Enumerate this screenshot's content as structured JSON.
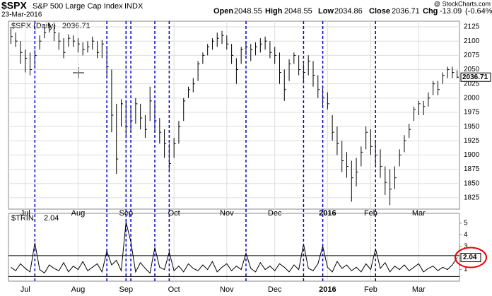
{
  "header": {
    "symbol": "$SPX",
    "name": "S&P 500 Large Cap Index",
    "exchange": "INDX",
    "date": "23-Mar-2016",
    "open_label": "Open",
    "open": 2048.55,
    "high_label": "High",
    "low_label": "Low",
    "close_label": "Close",
    "chg_label": "Chg",
    "chg": -13.09,
    "chg_pct": "(-0.64%)",
    "source": "@ StockCharts.com"
  },
  "chart_data": [
    {
      "type": "ohlc",
      "name": "$SPX (Daily)",
      "color": "#000000",
      "categories": [
        null,
        null,
        null,
        "Jul",
        null,
        null,
        null,
        null,
        null,
        null,
        null,
        null,
        null,
        null,
        "Aug",
        null,
        null,
        null,
        null,
        null,
        null,
        null,
        null,
        null,
        "Sep",
        null,
        null,
        null,
        null,
        null,
        null,
        null,
        null,
        null,
        "Oct",
        null,
        null,
        null,
        null,
        null,
        null,
        null,
        null,
        null,
        null,
        "Nov",
        null,
        null,
        null,
        null,
        null,
        null,
        null,
        null,
        null,
        "Dec",
        null,
        null,
        null,
        null,
        null,
        null,
        null,
        null,
        null,
        null,
        "2016",
        null,
        null,
        null,
        null,
        null,
        null,
        null,
        null,
        "Feb",
        null,
        null,
        null,
        null,
        null,
        null,
        null,
        null,
        null,
        "Mar",
        null,
        null,
        null,
        null,
        null,
        null,
        null,
        null
      ],
      "high": [
        2125,
        2115,
        2100,
        2085,
        2080,
        2085,
        2110,
        2125,
        2132,
        2128,
        2115,
        2105,
        2112,
        2110,
        2105,
        2098,
        2100,
        2108,
        2100,
        2102,
        2090,
        2050,
        1990,
        1998,
        1995,
        1985,
        2000,
        1990,
        1970,
        2020,
        1995,
        1965,
        1945,
        1920,
        1930,
        1960,
        2000,
        2020,
        2035,
        2065,
        2080,
        2095,
        2105,
        2115,
        2118,
        2110,
        2095,
        2070,
        2090,
        2098,
        2095,
        2098,
        2105,
        2108,
        2100,
        2090,
        2080,
        2050,
        2068,
        2080,
        2075,
        2060,
        2075,
        2065,
        2040,
        2020,
        2010,
        1970,
        1950,
        1925,
        1905,
        1890,
        1895,
        1915,
        1950,
        1945,
        1925,
        1910,
        1880,
        1875,
        1880,
        1910,
        1935,
        1955,
        1985,
        1995,
        1995,
        2010,
        2030,
        2030,
        2045,
        2055,
        2055,
        2048.55
      ],
      "low": [
        2095,
        2090,
        2060,
        2045,
        2040,
        2055,
        2085,
        2105,
        2115,
        2100,
        2085,
        2070,
        2090,
        2090,
        2080,
        2075,
        2080,
        2085,
        2070,
        2070,
        2035,
        1940,
        1867,
        1950,
        1930,
        1940,
        1955,
        1945,
        1930,
        1960,
        1940,
        1920,
        1895,
        1871,
        1895,
        1920,
        1960,
        2000,
        2010,
        2030,
        2060,
        2075,
        2085,
        2090,
        2095,
        2085,
        2060,
        2025,
        2060,
        2075,
        2065,
        2075,
        2080,
        2085,
        2070,
        2060,
        2025,
        1995,
        2030,
        2060,
        2040,
        2030,
        2040,
        2020,
        2000,
        1985,
        1980,
        1925,
        1900,
        1870,
        1860,
        1818,
        1845,
        1880,
        1910,
        1900,
        1880,
        1860,
        1830,
        1812,
        1840,
        1880,
        1905,
        1930,
        1960,
        1970,
        1970,
        1985,
        2005,
        2005,
        2025,
        2035,
        2035,
        2034.86
      ],
      "close": [
        2108,
        2100,
        2080,
        2070,
        2050,
        2075,
        2100,
        2115,
        2125,
        2115,
        2100,
        2080,
        2105,
        2100,
        2095,
        2085,
        2090,
        2100,
        2080,
        2095,
        2055,
        1970,
        1893,
        1990,
        1950,
        1960,
        1990,
        1965,
        1945,
        1995,
        1960,
        1940,
        1920,
        1885,
        1920,
        1950,
        1995,
        2015,
        2025,
        2060,
        2075,
        2090,
        2100,
        2105,
        2110,
        2095,
        2075,
        2050,
        2085,
        2090,
        2085,
        2090,
        2095,
        2100,
        2080,
        2075,
        2045,
        2015,
        2060,
        2075,
        2050,
        2045,
        2065,
        2040,
        2015,
        2000,
        1990,
        1940,
        1920,
        1890,
        1880,
        1860,
        1870,
        1905,
        1940,
        1915,
        1900,
        1880,
        1852,
        1840,
        1860,
        1900,
        1925,
        1945,
        1980,
        1990,
        1985,
        2000,
        2025,
        2015,
        2040,
        2050,
        2045,
        2036.71
      ],
      "ylim": [
        1805,
        2135
      ],
      "yticks": [
        1825,
        1850,
        1875,
        1900,
        1925,
        1950,
        1975,
        2000,
        2025,
        2050,
        2075,
        2100,
        2125
      ],
      "grid": true
    },
    {
      "type": "line",
      "name": "$TRIN",
      "color": "#000000",
      "values": [
        1.2,
        0.9,
        1.5,
        1.1,
        0.8,
        3.3,
        1.0,
        0.7,
        1.4,
        1.1,
        0.9,
        1.6,
        0.8,
        1.3,
        1.0,
        1.7,
        0.9,
        1.2,
        1.5,
        0.8,
        2.6,
        1.4,
        1.8,
        0.9,
        5.1,
        3.4,
        0.8,
        1.6,
        1.1,
        0.7,
        2.9,
        1.2,
        1.0,
        2.5,
        0.9,
        1.3,
        0.8,
        1.5,
        1.1,
        0.9,
        1.4,
        1.0,
        1.7,
        0.8,
        1.2,
        1.5,
        0.9,
        1.3,
        1.0,
        2.4,
        1.1,
        0.8,
        1.6,
        1.0,
        1.3,
        0.9,
        1.5,
        1.2,
        0.8,
        1.4,
        1.0,
        3.2,
        1.1,
        0.9,
        1.5,
        3.0,
        1.2,
        0.8,
        1.7,
        1.1,
        1.4,
        0.9,
        1.2,
        0.8,
        1.5,
        1.0,
        2.8,
        1.1,
        1.6,
        0.8,
        1.3,
        1.0,
        1.4,
        0.9,
        1.2,
        1.5,
        0.8,
        1.1,
        1.3,
        0.9,
        1.2,
        1.0,
        1.4,
        2.04
      ],
      "ylim": [
        0,
        5.85
      ],
      "yticks": [
        1,
        2,
        3,
        4,
        5
      ],
      "ref_lines": [
        2.2,
        0.4
      ],
      "marker_color": "#0000cc"
    }
  ]
}
